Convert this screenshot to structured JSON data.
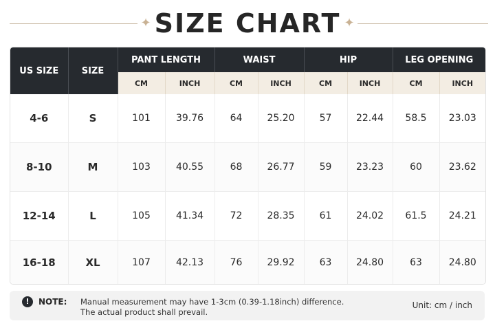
{
  "title": "SIZE CHART",
  "table": {
    "col_us_size": "US SIZE",
    "col_size": "SIZE",
    "groups": [
      "PANT LENGTH",
      "WAIST",
      "HIP",
      "LEG OPENING"
    ],
    "subheaders": [
      "CM",
      "INCH",
      "CM",
      "INCH",
      "CM",
      "INCH",
      "CM",
      "INCH"
    ],
    "rows": [
      {
        "us": "4-6",
        "size": "S",
        "values": [
          "101",
          "39.76",
          "64",
          "25.20",
          "57",
          "22.44",
          "58.5",
          "23.03"
        ]
      },
      {
        "us": "8-10",
        "size": "M",
        "values": [
          "103",
          "40.55",
          "68",
          "26.77",
          "59",
          "23.23",
          "60",
          "23.62"
        ]
      },
      {
        "us": "12-14",
        "size": "L",
        "values": [
          "105",
          "41.34",
          "72",
          "28.35",
          "61",
          "24.02",
          "61.5",
          "24.21"
        ]
      },
      {
        "us": "16-18",
        "size": "XL",
        "values": [
          "107",
          "42.13",
          "76",
          "29.92",
          "63",
          "24.80",
          "63",
          "24.80"
        ]
      }
    ]
  },
  "note": {
    "icon": "exclamation-icon",
    "label": "NOTE:",
    "line1": "Manual measurement may have 1-3cm (0.39-1.18inch) difference.",
    "line2": "The actual product shall prevail.",
    "unit": "Unit: cm / inch"
  },
  "colors": {
    "header_dark": "#262a2f",
    "subheader_beige": "#f3ede3",
    "accent_gold": "#c9b294"
  }
}
